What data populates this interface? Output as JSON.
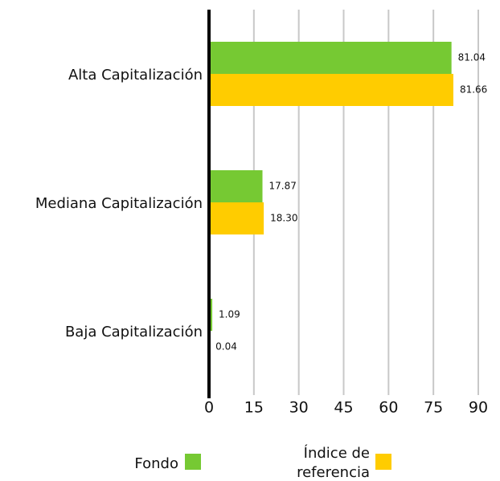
{
  "chart_data": {
    "type": "hbar",
    "categories": [
      "Alta Capitalización",
      "Mediana Capitalización",
      "Baja Capitalización"
    ],
    "series": [
      {
        "name": "Fondo",
        "color": "#76c933",
        "values": [
          81.04,
          17.87,
          1.09
        ],
        "value_labels": [
          "81.04",
          "17.87",
          "1.09"
        ]
      },
      {
        "name": "Índice de referencia",
        "color": "#ffcc00",
        "values": [
          81.66,
          18.3,
          0.04
        ],
        "value_labels": [
          "81.66",
          "18.30",
          "0.04"
        ]
      }
    ],
    "xlim": [
      0,
      90
    ],
    "xticks": [
      0,
      15,
      30,
      45,
      60,
      75,
      90
    ],
    "grid": true,
    "legend": "bottom"
  }
}
